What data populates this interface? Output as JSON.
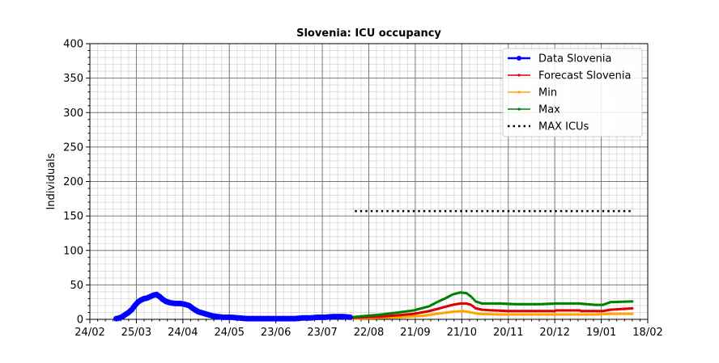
{
  "chart_data": {
    "type": "line",
    "title": "Slovenia: ICU occupancy",
    "xlabel": "",
    "ylabel": "Individuals",
    "xlim": [
      "2020-02-24",
      "2021-02-18"
    ],
    "ylim": [
      0,
      400
    ],
    "x_ticks": [
      "24/02",
      "25/03",
      "24/04",
      "24/05",
      "23/06",
      "23/07",
      "22/08",
      "21/09",
      "21/10",
      "20/11",
      "20/12",
      "19/01",
      "18/02"
    ],
    "y_ticks": [
      "0",
      "50",
      "100",
      "150",
      "200",
      "250",
      "300",
      "350",
      "400"
    ],
    "grid": true,
    "legend_position": "top-right",
    "series": [
      {
        "name": "Data Slovenia",
        "color": "#0000ff",
        "style": "thick-line-dots",
        "points": [
          [
            "2020-03-12",
            1
          ],
          [
            "2020-03-14",
            2
          ],
          [
            "2020-03-16",
            4
          ],
          [
            "2020-03-18",
            7
          ],
          [
            "2020-03-20",
            10
          ],
          [
            "2020-03-22",
            14
          ],
          [
            "2020-03-24",
            20
          ],
          [
            "2020-03-26",
            25
          ],
          [
            "2020-03-28",
            28
          ],
          [
            "2020-03-30",
            30
          ],
          [
            "2020-04-01",
            31
          ],
          [
            "2020-04-03",
            33
          ],
          [
            "2020-04-05",
            35
          ],
          [
            "2020-04-07",
            36
          ],
          [
            "2020-04-09",
            33
          ],
          [
            "2020-04-11",
            29
          ],
          [
            "2020-04-13",
            26
          ],
          [
            "2020-04-16",
            24
          ],
          [
            "2020-04-19",
            23
          ],
          [
            "2020-04-22",
            23
          ],
          [
            "2020-04-25",
            22
          ],
          [
            "2020-04-28",
            20
          ],
          [
            "2020-05-01",
            15
          ],
          [
            "2020-05-04",
            11
          ],
          [
            "2020-05-07",
            9
          ],
          [
            "2020-05-10",
            7
          ],
          [
            "2020-05-13",
            5
          ],
          [
            "2020-05-16",
            4
          ],
          [
            "2020-05-20",
            3
          ],
          [
            "2020-05-25",
            3
          ],
          [
            "2020-05-30",
            2
          ],
          [
            "2020-06-05",
            1
          ],
          [
            "2020-06-12",
            1
          ],
          [
            "2020-06-20",
            1
          ],
          [
            "2020-06-25",
            1
          ],
          [
            "2020-06-30",
            1
          ],
          [
            "2020-07-05",
            1
          ],
          [
            "2020-07-10",
            2
          ],
          [
            "2020-07-15",
            2
          ],
          [
            "2020-07-20",
            3
          ],
          [
            "2020-07-25",
            3
          ],
          [
            "2020-07-30",
            4
          ],
          [
            "2020-08-05",
            4
          ],
          [
            "2020-08-10",
            3
          ]
        ]
      },
      {
        "name": "Forecast Slovenia",
        "color": "#dd0000",
        "style": "line-small-dots",
        "points": [
          [
            "2020-08-10",
            2
          ],
          [
            "2020-08-20",
            3
          ],
          [
            "2020-08-30",
            4
          ],
          [
            "2020-09-10",
            6
          ],
          [
            "2020-09-20",
            8
          ],
          [
            "2020-09-30",
            12
          ],
          [
            "2020-10-05",
            15
          ],
          [
            "2020-10-10",
            18
          ],
          [
            "2020-10-15",
            21
          ],
          [
            "2020-10-20",
            23
          ],
          [
            "2020-10-24",
            23
          ],
          [
            "2020-10-27",
            21
          ],
          [
            "2020-10-30",
            16
          ],
          [
            "2020-11-03",
            14
          ],
          [
            "2020-11-10",
            13
          ],
          [
            "2020-11-20",
            12
          ],
          [
            "2020-12-05",
            12
          ],
          [
            "2020-12-20",
            12
          ],
          [
            "2020-12-21",
            13
          ],
          [
            "2021-01-05",
            13
          ],
          [
            "2021-01-06",
            12
          ],
          [
            "2021-01-20",
            12
          ],
          [
            "2021-01-25",
            14
          ],
          [
            "2021-02-08",
            16
          ]
        ]
      },
      {
        "name": "Min",
        "color": "#ffa500",
        "style": "line-small-dots",
        "points": [
          [
            "2020-08-10",
            1
          ],
          [
            "2020-08-25",
            2
          ],
          [
            "2020-09-10",
            3
          ],
          [
            "2020-09-25",
            5
          ],
          [
            "2020-10-05",
            8
          ],
          [
            "2020-10-15",
            11
          ],
          [
            "2020-10-22",
            12
          ],
          [
            "2020-10-27",
            10
          ],
          [
            "2020-11-01",
            8
          ],
          [
            "2020-11-15",
            7
          ],
          [
            "2020-12-15",
            7
          ],
          [
            "2021-01-15",
            7
          ],
          [
            "2021-01-25",
            8
          ],
          [
            "2021-02-08",
            8
          ]
        ]
      },
      {
        "name": "Max",
        "color": "#008000",
        "style": "line-small-dots",
        "points": [
          [
            "2020-08-10",
            3
          ],
          [
            "2020-08-20",
            5
          ],
          [
            "2020-08-30",
            7
          ],
          [
            "2020-09-10",
            10
          ],
          [
            "2020-09-20",
            13
          ],
          [
            "2020-09-30",
            19
          ],
          [
            "2020-10-05",
            25
          ],
          [
            "2020-10-10",
            30
          ],
          [
            "2020-10-15",
            36
          ],
          [
            "2020-10-20",
            39
          ],
          [
            "2020-10-24",
            38
          ],
          [
            "2020-10-27",
            33
          ],
          [
            "2020-10-30",
            26
          ],
          [
            "2020-11-03",
            23
          ],
          [
            "2020-11-15",
            23
          ],
          [
            "2020-11-25",
            22
          ],
          [
            "2020-12-10",
            22
          ],
          [
            "2020-12-21",
            23
          ],
          [
            "2021-01-05",
            23
          ],
          [
            "2021-01-15",
            21
          ],
          [
            "2021-01-20",
            21
          ],
          [
            "2021-01-25",
            25
          ],
          [
            "2021-02-08",
            26
          ]
        ]
      },
      {
        "name": "MAX ICUs",
        "color": "#000000",
        "style": "dotted",
        "points": [
          [
            "2020-08-13",
            157
          ],
          [
            "2021-02-07",
            157
          ]
        ]
      }
    ]
  }
}
